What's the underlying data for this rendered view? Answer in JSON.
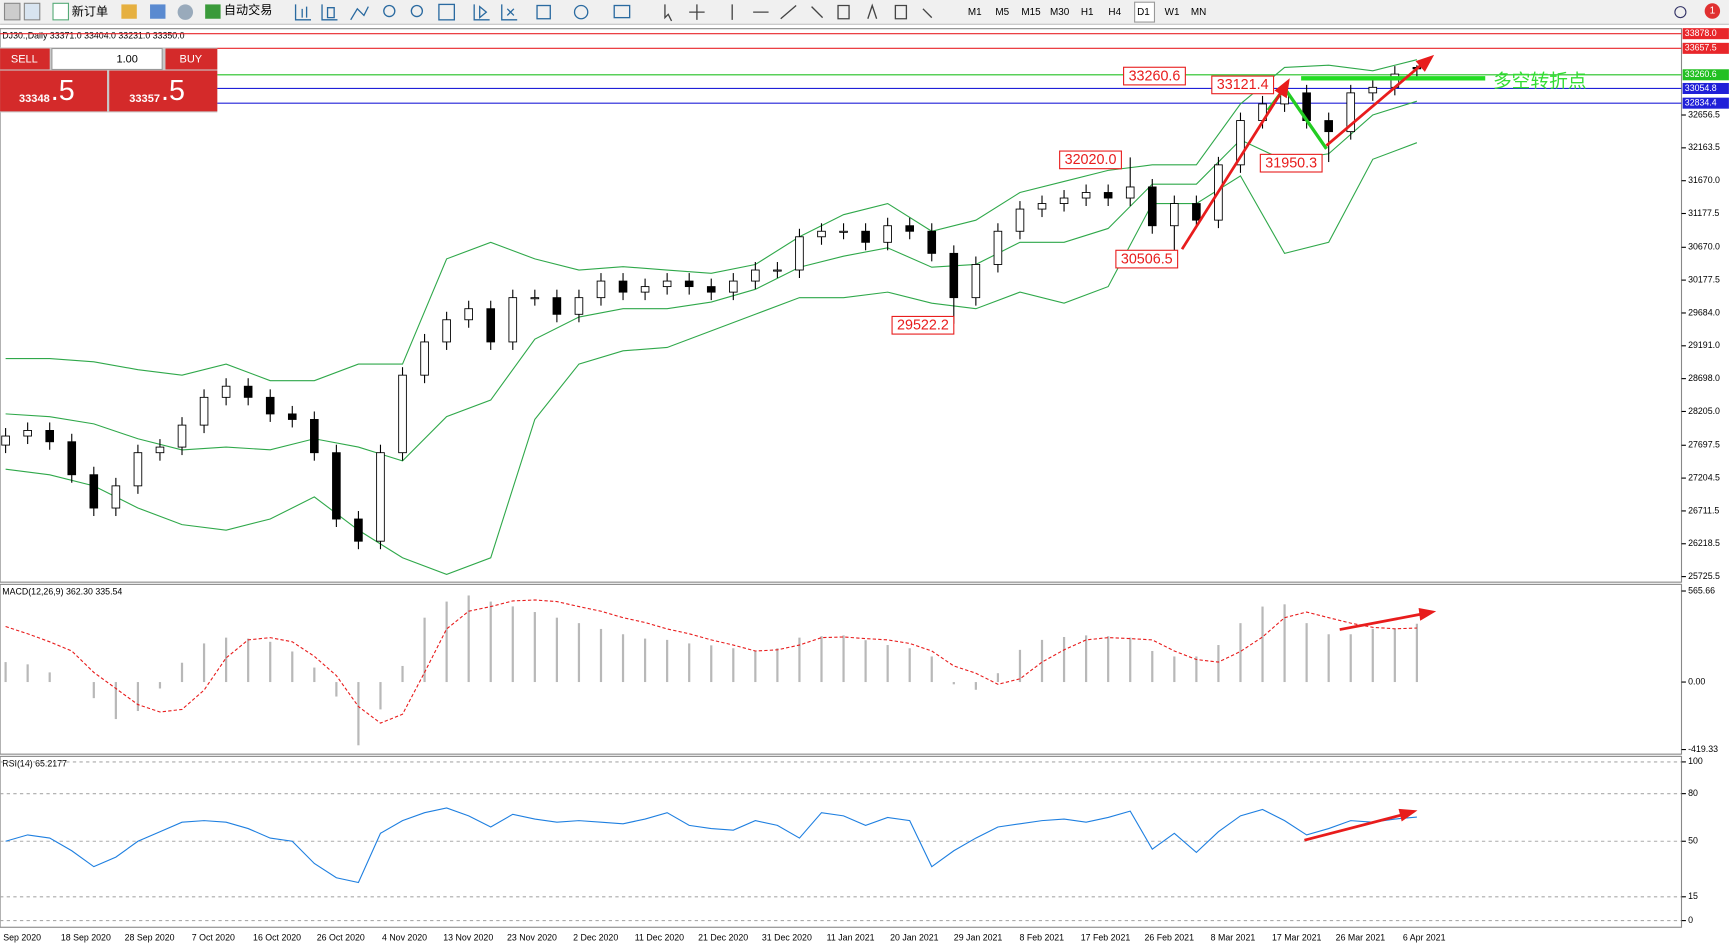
{
  "toolbar": {
    "new_order": "新订单",
    "auto_trading": "自动交易",
    "timeframes": [
      "M1",
      "M5",
      "M15",
      "M30",
      "H1",
      "H4",
      "D1",
      "W1",
      "MN"
    ],
    "notifications": "1"
  },
  "order_panel": {
    "sell": "SELL",
    "buy": "BUY",
    "lots": "1.00",
    "sell_price_main": "33348",
    "sell_price_pips": ".5",
    "buy_price_main": "33357",
    "buy_price_pips": ".5"
  },
  "chart_data": [
    {
      "type": "candlestick",
      "title": "DJ30.,Daily  33371.0 33404.0 33231.0 33350.0",
      "open": [
        27700,
        27836,
        27920,
        27750,
        27255,
        26755,
        27088,
        27586,
        27670,
        28000,
        28417,
        28584,
        28417,
        28168,
        28085,
        27586,
        26590,
        26257,
        27586,
        28750,
        29249,
        29582,
        29748,
        29249,
        29914,
        29914,
        29664,
        29914,
        30163,
        29997,
        30080,
        30163,
        30080,
        29997,
        30163,
        30329,
        30329,
        30828,
        30911,
        30911,
        30745,
        30994,
        30911,
        30579,
        29914,
        30412,
        30911,
        31244,
        31327,
        31410,
        31493,
        31410,
        31576,
        30994,
        31327,
        31078,
        31908,
        32573,
        32823,
        32989,
        32573,
        32407,
        32989,
        33072,
        33371
      ],
      "high": [
        27956,
        28040,
        28040,
        27870,
        27375,
        27208,
        27706,
        27790,
        28120,
        28537,
        28704,
        28704,
        28537,
        28288,
        28205,
        27706,
        26710,
        27706,
        28870,
        29369,
        29702,
        29868,
        29868,
        30034,
        30034,
        30034,
        30034,
        30283,
        30283,
        30200,
        30283,
        30283,
        30200,
        30283,
        30449,
        30449,
        30948,
        31031,
        31031,
        31031,
        31114,
        31114,
        31031,
        30699,
        30532,
        31031,
        31364,
        31447,
        31530,
        31613,
        31613,
        32020.0,
        31696,
        31447,
        31447,
        32028,
        32693,
        32943,
        33121.4,
        33109,
        32693,
        33109,
        33192,
        33391,
        33404
      ],
      "low": [
        27580,
        27716,
        27630,
        27135,
        26635,
        26635,
        26968,
        27466,
        27550,
        27880,
        28297,
        28297,
        28048,
        27965,
        27466,
        26470,
        26137,
        26137,
        27466,
        28630,
        29129,
        29462,
        29129,
        29129,
        29794,
        29544,
        29544,
        29794,
        29877,
        29877,
        29960,
        29960,
        29877,
        29877,
        30043,
        30209,
        30209,
        30708,
        30791,
        30625,
        30625,
        30791,
        30459,
        29522.2,
        29794,
        30292,
        30791,
        31124,
        31207,
        31290,
        31290,
        31290,
        30874,
        30506.5,
        30958,
        30958,
        31788,
        32453,
        32703,
        32453,
        31950.3,
        32287,
        32869,
        32952,
        33231
      ],
      "close": [
        27836,
        27920,
        27750,
        27255,
        26755,
        27088,
        27586,
        27670,
        28000,
        28417,
        28584,
        28417,
        28168,
        28085,
        27586,
        26590,
        26257,
        27586,
        28750,
        29249,
        29582,
        29748,
        29249,
        29914,
        29914,
        29664,
        29914,
        30163,
        29997,
        30080,
        30163,
        30080,
        29997,
        30163,
        30329,
        30329,
        30828,
        30911,
        30911,
        30745,
        30994,
        30911,
        30579,
        29914,
        30412,
        30911,
        31244,
        31327,
        31410,
        31493,
        31410,
        31576,
        30994,
        31327,
        31078,
        31908,
        32573,
        32823,
        32989,
        32573,
        32407,
        32989,
        33072,
        33271,
        33350
      ],
      "bands": {
        "color": "#2fa84a",
        "upper": [
          28999,
          28999,
          28950,
          28833,
          28750,
          28917,
          28667,
          28667,
          28917,
          28917,
          30496,
          30745,
          30496,
          30329,
          30379,
          30329,
          30280,
          30412,
          30828,
          31160,
          31327,
          30911,
          31077,
          31493,
          31659,
          31825,
          31908,
          31908,
          32823,
          33371,
          33404,
          33321,
          33487
        ],
        "middle": [
          28169,
          28127,
          28019,
          27795,
          27628,
          27670,
          27629,
          27795,
          27670,
          27463,
          28128,
          28377,
          29291,
          29623,
          29748,
          29748,
          29848,
          30039,
          30371,
          30537,
          30662,
          30371,
          30413,
          30745,
          30745,
          30953,
          31618,
          31618,
          32283,
          31975,
          32075,
          32657,
          32864
        ],
        "lower": [
          27338,
          27254,
          27088,
          26756,
          26506,
          26423,
          26590,
          26922,
          26423,
          26008,
          25759,
          26008,
          28086,
          28917,
          29116,
          29166,
          29415,
          29665,
          29914,
          29914,
          29997,
          29831,
          29748,
          29997,
          29831,
          30080,
          31327,
          31327,
          31742,
          30579,
          30745,
          31992,
          32241
        ]
      },
      "ylim": [
        25642,
        33953
      ],
      "yticks": [
        32656.5,
        32163.5,
        {
          "value": 31670,
          "label": "31670.0"
        },
        31177.5,
        {
          "value": 30670,
          "label": "30670.0"
        },
        30177.5,
        {
          "value": 29684,
          "label": "29684.0"
        },
        {
          "value": 29191,
          "label": "29191.0"
        },
        {
          "value": 28698,
          "label": "28698.0"
        },
        {
          "value": 28205,
          "label": "28205.0"
        },
        27697.5,
        27204.5,
        26711.5,
        26218.5,
        25725.5
      ],
      "levels": [
        {
          "value": 33878,
          "label": "33878.0",
          "color": "#e8262a"
        },
        {
          "value": 33657.5,
          "label": "33657.5",
          "color": "#e8262a"
        },
        {
          "value": 33260.6,
          "label": "33260.6",
          "color": "#22c022"
        },
        {
          "value": 33054.8,
          "label": "33054.8",
          "color": "#2020d8"
        },
        {
          "value": 32834.4,
          "label": "32834.4",
          "color": "#2020d8"
        }
      ],
      "annotations": [
        "33260.6",
        "33121.4",
        "32020.0",
        "31950.3",
        "30506.5",
        "29522.2"
      ],
      "note": "多空转折点",
      "dates": [
        "Sep 2020",
        "18 Sep 2020",
        "28 Sep 2020",
        "7 Oct 2020",
        "16 Oct 2020",
        "26 Oct 2020",
        "4 Nov 2020",
        "13 Nov 2020",
        "23 Nov 2020",
        "2 Dec 2020",
        "11 Dec 2020",
        "21 Dec 2020",
        "31 Dec 2020",
        "11 Jan 2021",
        "20 Jan 2021",
        "29 Jan 2021",
        "8 Feb 2021",
        "17 Feb 2021",
        "26 Feb 2021",
        "8 Mar 2021",
        "17 Mar 2021",
        "26 Mar 2021",
        "6 Apr 2021"
      ]
    },
    {
      "type": "macd",
      "title": "MACD(12,26,9) 362.30 335.54",
      "histogram": [
        124,
        110,
        60,
        0,
        -100,
        -230,
        -180,
        -40,
        120,
        240,
        276,
        270,
        250,
        190,
        90,
        -90,
        -393,
        -170,
        100,
        400,
        500,
        538,
        500,
        470,
        435,
        400,
        366,
        330,
        297,
        270,
        262,
        240,
        228,
        210,
        193,
        210,
        276,
        285,
        290,
        260,
        230,
        210,
        159,
        -14,
        -48,
        55,
        200,
        262,
        280,
        290,
        285,
        276,
        193,
        159,
        159,
        230,
        366,
        469,
        483,
        366,
        297,
        297,
        331,
        331,
        362.3
      ],
      "signal": [
        345,
        300,
        250,
        193,
        60,
        -40,
        -140,
        -186,
        -170,
        -50,
        150,
        262,
        276,
        250,
        160,
        40,
        -152,
        -255,
        -200,
        60,
        330,
        440,
        469,
        504,
        510,
        500,
        469,
        440,
        400,
        370,
        330,
        300,
        262,
        230,
        193,
        200,
        230,
        276,
        280,
        270,
        262,
        240,
        193,
        100,
        55,
        -14,
        20,
        124,
        200,
        262,
        276,
        270,
        262,
        193,
        140,
        124,
        190,
        280,
        400,
        435,
        400,
        366,
        340,
        331,
        335.54
      ],
      "ylim": [
        -448,
        607
      ],
      "yticks": [
        565.66,
        {
          "value": 0,
          "label": "0.00"
        },
        -419.33
      ]
    },
    {
      "type": "rsi",
      "title": "RSI(14) 65.2177",
      "values": [
        50,
        54,
        52,
        44,
        34,
        40,
        50,
        56,
        62,
        63,
        62,
        58,
        52,
        50,
        36,
        27,
        24,
        55,
        63,
        68,
        71,
        66,
        59,
        67,
        64,
        62,
        63,
        62,
        61,
        64,
        68,
        60,
        58,
        57,
        63,
        60,
        52,
        68,
        66,
        60,
        65,
        63,
        34,
        44,
        52,
        59,
        61,
        63,
        64,
        62,
        65,
        69,
        45,
        55,
        43,
        56,
        66,
        70,
        63,
        54,
        58,
        63,
        62,
        64,
        65.2177
      ],
      "ylim": [
        -4.2,
        103.5
      ],
      "yticks": [
        100,
        80,
        50,
        15,
        0
      ]
    }
  ]
}
